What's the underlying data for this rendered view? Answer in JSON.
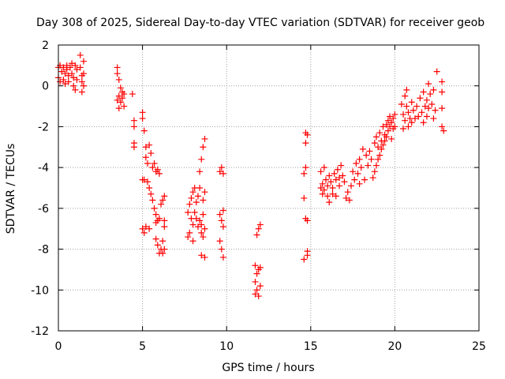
{
  "chart_data": {
    "type": "scatter",
    "title": "Day 308 of 2025, Sidereal Day-to-day VTEC variation (SDTVAR) for receiver geob",
    "xlabel": "GPS time / hours",
    "ylabel": "SDTVAR / TECUs",
    "xlim": [
      0,
      25
    ],
    "ylim": [
      -12,
      2
    ],
    "xticks": [
      0,
      5,
      10,
      15,
      20,
      25
    ],
    "yticks": [
      2,
      0,
      -2,
      -4,
      -6,
      -8,
      -10,
      -12
    ],
    "grid": true,
    "marker": "plus",
    "colors": {
      "series": "#ff0000",
      "grid": "#a0a0a0",
      "axes": "#000000"
    },
    "series": [
      {
        "values": [
          [
            0.0,
            0.9
          ],
          [
            0.0,
            0.4
          ],
          [
            0.1,
            0.2
          ],
          [
            0.1,
            1.0
          ],
          [
            0.2,
            0.7
          ],
          [
            0.3,
            0.3
          ],
          [
            0.3,
            0.9
          ],
          [
            0.4,
            0.6
          ],
          [
            0.4,
            0.1
          ],
          [
            0.5,
            0.8
          ],
          [
            0.5,
            1.0
          ],
          [
            0.6,
            0.5
          ],
          [
            0.6,
            0.2
          ],
          [
            0.7,
            0.9
          ],
          [
            0.8,
            1.1
          ],
          [
            0.8,
            0.6
          ],
          [
            0.9,
            0.4
          ],
          [
            0.9,
            0.0
          ],
          [
            1.0,
            -0.2
          ],
          [
            1.0,
            1.0
          ],
          [
            1.1,
            0.8
          ],
          [
            1.1,
            0.3
          ],
          [
            1.3,
            1.5
          ],
          [
            1.3,
            0.9
          ],
          [
            1.4,
            0.5
          ],
          [
            1.4,
            0.2
          ],
          [
            1.4,
            -0.3
          ],
          [
            1.5,
            1.2
          ],
          [
            1.5,
            0.6
          ],
          [
            1.5,
            0.0
          ],
          [
            3.5,
            0.9
          ],
          [
            3.5,
            0.6
          ],
          [
            3.5,
            -0.7
          ],
          [
            3.6,
            0.3
          ],
          [
            3.6,
            -0.5
          ],
          [
            3.6,
            -1.1
          ],
          [
            3.7,
            -0.1
          ],
          [
            3.7,
            -0.8
          ],
          [
            3.8,
            -0.3
          ],
          [
            3.8,
            -0.6
          ],
          [
            3.9,
            -0.4
          ],
          [
            3.9,
            -1.0
          ],
          [
            4.4,
            -0.4
          ],
          [
            4.5,
            -1.7
          ],
          [
            4.5,
            -2.0
          ],
          [
            4.5,
            -2.8
          ],
          [
            4.5,
            -3.0
          ],
          [
            5.0,
            -1.3
          ],
          [
            5.0,
            -1.6
          ],
          [
            5.0,
            -4.6
          ],
          [
            5.0,
            -7.0
          ],
          [
            5.1,
            -2.2
          ],
          [
            5.1,
            -4.6
          ],
          [
            5.1,
            -7.2
          ],
          [
            5.2,
            -3.0
          ],
          [
            5.2,
            -3.5
          ],
          [
            5.2,
            -6.9
          ],
          [
            5.3,
            -3.8
          ],
          [
            5.3,
            -4.7
          ],
          [
            5.4,
            -2.9
          ],
          [
            5.4,
            -5.0
          ],
          [
            5.4,
            -7.0
          ],
          [
            5.5,
            -3.3
          ],
          [
            5.5,
            -5.3
          ],
          [
            5.6,
            -4.0
          ],
          [
            5.6,
            -5.6
          ],
          [
            5.7,
            -3.8
          ],
          [
            5.7,
            -6.0
          ],
          [
            5.8,
            -4.2
          ],
          [
            5.8,
            -6.3
          ],
          [
            5.8,
            -6.7
          ],
          [
            5.8,
            -7.5
          ],
          [
            5.9,
            -4.1
          ],
          [
            5.9,
            -6.6
          ],
          [
            5.9,
            -7.8
          ],
          [
            6.0,
            -4.3
          ],
          [
            6.0,
            -6.5
          ],
          [
            6.0,
            -8.2
          ],
          [
            6.1,
            -5.8
          ],
          [
            6.1,
            -8.0
          ],
          [
            6.2,
            -5.6
          ],
          [
            6.2,
            -7.6
          ],
          [
            6.2,
            -8.2
          ],
          [
            6.3,
            -5.4
          ],
          [
            6.3,
            -6.6
          ],
          [
            6.3,
            -6.9
          ],
          [
            6.3,
            -8.0
          ],
          [
            7.7,
            -6.2
          ],
          [
            7.7,
            -7.4
          ],
          [
            7.8,
            -5.8
          ],
          [
            7.8,
            -7.2
          ],
          [
            7.9,
            -5.5
          ],
          [
            7.9,
            -6.5
          ],
          [
            8.0,
            -5.2
          ],
          [
            8.0,
            -6.8
          ],
          [
            8.0,
            -7.6
          ],
          [
            8.1,
            -5.0
          ],
          [
            8.1,
            -6.2
          ],
          [
            8.2,
            -5.7
          ],
          [
            8.2,
            -6.5
          ],
          [
            8.3,
            -5.4
          ],
          [
            8.3,
            -6.9
          ],
          [
            8.4,
            -6.6
          ],
          [
            8.4,
            -5.0
          ],
          [
            8.4,
            -4.2
          ],
          [
            8.5,
            -6.8
          ],
          [
            8.5,
            -7.2
          ],
          [
            8.5,
            -3.6
          ],
          [
            8.5,
            -8.3
          ],
          [
            8.6,
            -3.0
          ],
          [
            8.6,
            -5.6
          ],
          [
            8.6,
            -6.3
          ],
          [
            8.6,
            -7.4
          ],
          [
            8.7,
            -2.6
          ],
          [
            8.7,
            -5.2
          ],
          [
            8.7,
            -7.0
          ],
          [
            8.7,
            -8.4
          ],
          [
            9.6,
            -4.2
          ],
          [
            9.6,
            -6.3
          ],
          [
            9.6,
            -7.6
          ],
          [
            9.7,
            -4.0
          ],
          [
            9.7,
            -6.6
          ],
          [
            9.7,
            -8.0
          ],
          [
            9.8,
            -4.3
          ],
          [
            9.8,
            -6.9
          ],
          [
            9.8,
            -8.4
          ],
          [
            9.8,
            -6.1
          ],
          [
            11.7,
            -8.8
          ],
          [
            11.7,
            -9.6
          ],
          [
            11.7,
            -10.2
          ],
          [
            11.8,
            -7.3
          ],
          [
            11.8,
            -9.2
          ],
          [
            11.8,
            -10.0
          ],
          [
            11.9,
            -7.0
          ],
          [
            11.9,
            -9.0
          ],
          [
            11.9,
            -10.3
          ],
          [
            12.0,
            -6.8
          ],
          [
            12.0,
            -8.9
          ],
          [
            12.0,
            -9.8
          ],
          [
            14.6,
            -4.3
          ],
          [
            14.6,
            -5.5
          ],
          [
            14.6,
            -8.5
          ],
          [
            14.7,
            -2.3
          ],
          [
            14.7,
            -2.8
          ],
          [
            14.7,
            -4.0
          ],
          [
            14.7,
            -6.5
          ],
          [
            14.8,
            -2.4
          ],
          [
            14.8,
            -6.6
          ],
          [
            14.8,
            -8.1
          ],
          [
            14.8,
            -8.3
          ],
          [
            15.6,
            -4.2
          ],
          [
            15.6,
            -5.0
          ],
          [
            15.7,
            -4.8
          ],
          [
            15.7,
            -5.3
          ],
          [
            15.8,
            -4.0
          ],
          [
            15.8,
            -5.1
          ],
          [
            15.9,
            -4.6
          ],
          [
            16.0,
            -4.9
          ],
          [
            16.0,
            -5.4
          ],
          [
            16.1,
            -4.4
          ],
          [
            16.1,
            -5.7
          ],
          [
            16.2,
            -4.7
          ],
          [
            16.3,
            -5.0
          ],
          [
            16.3,
            -5.3
          ],
          [
            16.4,
            -4.3
          ],
          [
            16.5,
            -4.6
          ],
          [
            16.5,
            -5.4
          ],
          [
            16.6,
            -4.1
          ],
          [
            16.7,
            -4.9
          ],
          [
            16.7,
            -4.5
          ],
          [
            16.8,
            -3.9
          ],
          [
            16.9,
            -4.4
          ],
          [
            17.0,
            -4.7
          ],
          [
            17.1,
            -5.5
          ],
          [
            17.2,
            -5.2
          ],
          [
            17.3,
            -5.6
          ],
          [
            17.4,
            -4.9
          ],
          [
            17.5,
            -4.2
          ],
          [
            17.6,
            -4.6
          ],
          [
            17.7,
            -3.8
          ],
          [
            17.8,
            -4.3
          ],
          [
            17.9,
            -3.6
          ],
          [
            17.9,
            -4.8
          ],
          [
            18.0,
            -4.0
          ],
          [
            18.1,
            -3.1
          ],
          [
            18.2,
            -4.6
          ],
          [
            18.3,
            -3.4
          ],
          [
            18.4,
            -3.9
          ],
          [
            18.5,
            -3.2
          ],
          [
            18.6,
            -3.6
          ],
          [
            18.7,
            -4.5
          ],
          [
            18.8,
            -2.8
          ],
          [
            18.8,
            -4.2
          ],
          [
            18.9,
            -2.5
          ],
          [
            18.9,
            -3.9
          ],
          [
            19.0,
            -3.0
          ],
          [
            19.0,
            -3.6
          ],
          [
            19.1,
            -2.3
          ],
          [
            19.1,
            -3.4
          ],
          [
            19.2,
            -2.7
          ],
          [
            19.2,
            -3.1
          ],
          [
            19.3,
            -2.0
          ],
          [
            19.3,
            -2.9
          ],
          [
            19.4,
            -2.4
          ],
          [
            19.4,
            -2.7
          ],
          [
            19.5,
            -1.9
          ],
          [
            19.5,
            -2.5
          ],
          [
            19.6,
            -1.7
          ],
          [
            19.6,
            -2.2
          ],
          [
            19.7,
            -2.0
          ],
          [
            19.7,
            -1.5
          ],
          [
            19.8,
            -1.8
          ],
          [
            19.8,
            -2.6
          ],
          [
            19.9,
            -1.6
          ],
          [
            19.9,
            -2.1
          ],
          [
            20.0,
            -1.4
          ],
          [
            20.0,
            -2.0
          ],
          [
            20.4,
            -0.9
          ],
          [
            20.5,
            -1.4
          ],
          [
            20.5,
            -2.1
          ],
          [
            20.6,
            -0.5
          ],
          [
            20.6,
            -1.7
          ],
          [
            20.7,
            -1.0
          ],
          [
            20.7,
            -0.2
          ],
          [
            20.8,
            -1.3
          ],
          [
            20.8,
            -2.0
          ],
          [
            20.9,
            -1.6
          ],
          [
            21.0,
            -0.8
          ],
          [
            21.0,
            -1.8
          ],
          [
            21.1,
            -1.2
          ],
          [
            21.2,
            -1.6
          ],
          [
            21.3,
            -1.0
          ],
          [
            21.4,
            -1.5
          ],
          [
            21.5,
            -0.6
          ],
          [
            21.6,
            -1.3
          ],
          [
            21.7,
            -1.8
          ],
          [
            21.7,
            -0.3
          ],
          [
            21.8,
            -1.0
          ],
          [
            21.9,
            -0.7
          ],
          [
            21.9,
            -1.5
          ],
          [
            22.0,
            0.1
          ],
          [
            22.0,
            -1.1
          ],
          [
            22.1,
            -0.4
          ],
          [
            22.2,
            -0.9
          ],
          [
            22.3,
            -1.6
          ],
          [
            22.3,
            -0.2
          ],
          [
            22.4,
            -1.2
          ],
          [
            22.5,
            0.7
          ],
          [
            22.8,
            0.2
          ],
          [
            22.8,
            -0.3
          ],
          [
            22.8,
            -1.1
          ],
          [
            22.8,
            -2.0
          ],
          [
            22.9,
            -2.2
          ]
        ]
      }
    ]
  }
}
